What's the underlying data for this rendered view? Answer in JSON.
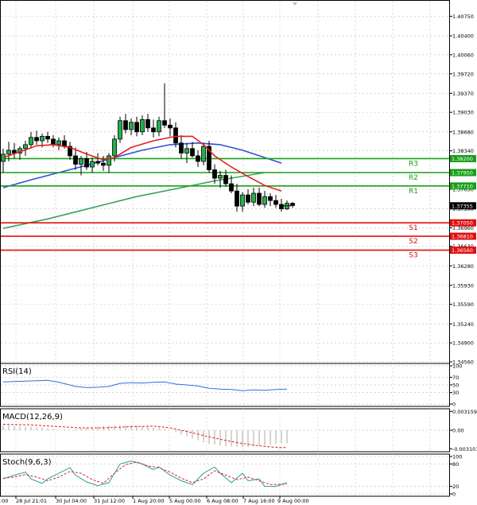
{
  "chart_data": {
    "type": "candlestick",
    "instrument_hint": "forex H4",
    "price_axis": {
      "ticks": [
        "1.40750",
        "1.40400",
        "1.40060",
        "1.39720",
        "1.39370",
        "1.39030",
        "1.38680",
        "1.38340",
        "1.37650",
        "1.37300",
        "1.36960",
        "1.36630",
        "1.36280",
        "1.35930",
        "1.35590",
        "1.35240",
        "1.34900",
        "1.34560"
      ],
      "range": [
        1.3456,
        1.4097
      ]
    },
    "time_axis": {
      "labels": [
        "28 Jul 21:01",
        "30 Jul 04:00",
        "31 Jul 12:00",
        "1 Aug 20:00",
        "5 Aug 00:00",
        "6 Aug 08:00",
        "7 Aug 16:00",
        "9 Aug 00:00"
      ],
      "leading_fragment": ":00"
    },
    "current_price": {
      "label": "1.37355",
      "value": 1.37355
    },
    "levels": [
      {
        "name": "R3",
        "value": 1.382,
        "label": "1.38200",
        "color": "#19a019"
      },
      {
        "name": "R2",
        "value": 1.3795,
        "label": "1.37950",
        "color": "#19a019"
      },
      {
        "name": "R1",
        "value": 1.3771,
        "label": "1.37710",
        "color": "#19a019"
      },
      {
        "name": "S1",
        "value": 1.3705,
        "label": "1.37050",
        "color": "#e01010"
      },
      {
        "name": "S2",
        "value": 1.3681,
        "label": "1.36810",
        "color": "#e01010"
      },
      {
        "name": "S3",
        "value": 1.3656,
        "label": "1.36560",
        "color": "#e01010"
      }
    ],
    "candles": [
      [
        1.3815,
        1.3838,
        1.3795,
        1.3828
      ],
      [
        1.3828,
        1.385,
        1.3815,
        1.3835
      ],
      [
        1.3835,
        1.3848,
        1.382,
        1.383
      ],
      [
        1.383,
        1.3842,
        1.3818,
        1.3838
      ],
      [
        1.3838,
        1.3852,
        1.3825,
        1.3845
      ],
      [
        1.3845,
        1.3868,
        1.3838,
        1.3858
      ],
      [
        1.3858,
        1.387,
        1.3845,
        1.3852
      ],
      [
        1.3852,
        1.3865,
        1.384,
        1.386
      ],
      [
        1.386,
        1.3868,
        1.3848,
        1.3855
      ],
      [
        1.3855,
        1.3862,
        1.384,
        1.3845
      ],
      [
        1.3845,
        1.3858,
        1.3835,
        1.3852
      ],
      [
        1.3852,
        1.3862,
        1.3838,
        1.3842
      ],
      [
        1.3842,
        1.385,
        1.3818,
        1.3825
      ],
      [
        1.3825,
        1.384,
        1.38,
        1.381
      ],
      [
        1.381,
        1.3825,
        1.379,
        1.382
      ],
      [
        1.382,
        1.3832,
        1.38,
        1.3805
      ],
      [
        1.3805,
        1.3822,
        1.3795,
        1.3815
      ],
      [
        1.3815,
        1.383,
        1.3808,
        1.3812
      ],
      [
        1.3812,
        1.3825,
        1.3798,
        1.3808
      ],
      [
        1.3808,
        1.383,
        1.3795,
        1.3825
      ],
      [
        1.3825,
        1.3862,
        1.3815,
        1.3855
      ],
      [
        1.3855,
        1.3895,
        1.3848,
        1.3888
      ],
      [
        1.3888,
        1.39,
        1.3865,
        1.3872
      ],
      [
        1.3872,
        1.3892,
        1.3862,
        1.3885
      ],
      [
        1.3885,
        1.3895,
        1.386,
        1.3868
      ],
      [
        1.3868,
        1.3898,
        1.3862,
        1.389
      ],
      [
        1.389,
        1.39,
        1.3868,
        1.3875
      ],
      [
        1.3875,
        1.389,
        1.3858,
        1.3868
      ],
      [
        1.3868,
        1.3895,
        1.386,
        1.3888
      ],
      [
        1.3888,
        1.3955,
        1.3875,
        1.388
      ],
      [
        1.388,
        1.3892,
        1.386,
        1.3875
      ],
      [
        1.3875,
        1.3885,
        1.384,
        1.3848
      ],
      [
        1.3848,
        1.3862,
        1.382,
        1.383
      ],
      [
        1.383,
        1.3848,
        1.3812,
        1.3838
      ],
      [
        1.3838,
        1.385,
        1.3822,
        1.3825
      ],
      [
        1.3825,
        1.3835,
        1.3805,
        1.3815
      ],
      [
        1.3815,
        1.3848,
        1.3808,
        1.3842
      ],
      [
        1.3842,
        1.3852,
        1.3795,
        1.38
      ],
      [
        1.38,
        1.381,
        1.3775,
        1.3785
      ],
      [
        1.3785,
        1.3798,
        1.3768,
        1.379
      ],
      [
        1.379,
        1.38,
        1.377,
        1.3775
      ],
      [
        1.3775,
        1.379,
        1.3758,
        1.3762
      ],
      [
        1.3762,
        1.3775,
        1.3725,
        1.3735
      ],
      [
        1.3735,
        1.376,
        1.3725,
        1.3755
      ],
      [
        1.3755,
        1.3765,
        1.3738,
        1.3742
      ],
      [
        1.3742,
        1.3768,
        1.3735,
        1.3758
      ],
      [
        1.3758,
        1.3768,
        1.3735,
        1.3738
      ],
      [
        1.3738,
        1.3762,
        1.3732,
        1.3752
      ],
      [
        1.3752,
        1.3758,
        1.3735,
        1.3745
      ],
      [
        1.3745,
        1.3755,
        1.3732,
        1.3738
      ],
      [
        1.3738,
        1.3748,
        1.3725,
        1.373
      ],
      [
        1.373,
        1.3745,
        1.3728,
        1.374
      ],
      [
        1.374,
        1.3742,
        1.3732,
        1.3736
      ]
    ],
    "ma_red": [
      [
        0,
        1.3822
      ],
      [
        3,
        1.3832
      ],
      [
        6,
        1.3843
      ],
      [
        9,
        1.3845
      ],
      [
        12,
        1.384
      ],
      [
        15,
        1.3828
      ],
      [
        18,
        1.3818
      ],
      [
        20,
        1.3822
      ],
      [
        23,
        1.384
      ],
      [
        27,
        1.3852
      ],
      [
        31,
        1.386
      ],
      [
        34,
        1.386
      ],
      [
        36,
        1.3845
      ],
      [
        38,
        1.3825
      ],
      [
        41,
        1.3805
      ],
      [
        44,
        1.3788
      ],
      [
        47,
        1.3772
      ],
      [
        50,
        1.3762
      ]
    ],
    "ma_blue": [
      [
        0,
        1.3768
      ],
      [
        5,
        1.3782
      ],
      [
        10,
        1.3795
      ],
      [
        15,
        1.3808
      ],
      [
        20,
        1.3822
      ],
      [
        25,
        1.3835
      ],
      [
        30,
        1.3845
      ],
      [
        35,
        1.3848
      ],
      [
        39,
        1.3845
      ],
      [
        43,
        1.3835
      ],
      [
        47,
        1.3822
      ],
      [
        50,
        1.3812
      ]
    ],
    "ma_green": [
      [
        0,
        1.3695
      ],
      [
        8,
        1.3712
      ],
      [
        16,
        1.3732
      ],
      [
        24,
        1.3752
      ],
      [
        32,
        1.3768
      ],
      [
        38,
        1.378
      ],
      [
        44,
        1.379
      ],
      [
        47,
        1.3795
      ]
    ],
    "indicators": [
      {
        "name": "RSI(14)",
        "scale": [
          "100",
          "70",
          "50",
          "30",
          "0"
        ],
        "type": "line",
        "values": [
          [
            0,
            58
          ],
          [
            4,
            60
          ],
          [
            8,
            62
          ],
          [
            10,
            57
          ],
          [
            13,
            46
          ],
          [
            15,
            43
          ],
          [
            17,
            44
          ],
          [
            19,
            46
          ],
          [
            21,
            54
          ],
          [
            23,
            56
          ],
          [
            25,
            55
          ],
          [
            27,
            57
          ],
          [
            29,
            58
          ],
          [
            31,
            52
          ],
          [
            33,
            50
          ],
          [
            35,
            47
          ],
          [
            37,
            41
          ],
          [
            39,
            39
          ],
          [
            41,
            38
          ],
          [
            43,
            35
          ],
          [
            45,
            37
          ],
          [
            47,
            36
          ],
          [
            49,
            38
          ],
          [
            51,
            39
          ]
        ]
      },
      {
        "name": "MACD(12,26,9)",
        "scale": [
          "0.003159",
          "0.00",
          "-0.003101"
        ],
        "type": "macd",
        "histogram": [
          0.0008,
          0.0008,
          0.0007,
          0.0007,
          0.0006,
          0.0006,
          0.0005,
          0.0004,
          0.0003,
          0.0002,
          0.0001,
          0.0001,
          0.0001,
          0.0002,
          0.0003,
          0.0004,
          0.0005,
          0.0006,
          0.0007,
          0.0008,
          0.0008,
          0.0008,
          0.0008,
          0.0008,
          0.0008,
          0.0007,
          0.0006,
          0.0005,
          0.0004,
          0.0002,
          0.0,
          -0.0003,
          -0.0007,
          -0.001,
          -0.0014,
          -0.0017,
          -0.002,
          -0.0023,
          -0.0024,
          -0.0026,
          -0.0027,
          -0.0027,
          -0.0028,
          -0.0028,
          -0.0028,
          -0.0027,
          -0.0026,
          -0.0025,
          -0.0024,
          -0.0023,
          -0.0022,
          -0.0022
        ],
        "signal": [
          [
            0,
            0.001
          ],
          [
            5,
            0.0009
          ],
          [
            10,
            0.0006
          ],
          [
            14,
            0.0004
          ],
          [
            18,
            0.0004
          ],
          [
            23,
            0.0006
          ],
          [
            27,
            0.0007
          ],
          [
            30,
            0.0004
          ],
          [
            33,
            -0.0002
          ],
          [
            37,
            -0.0011
          ],
          [
            41,
            -0.0019
          ],
          [
            45,
            -0.0025
          ],
          [
            48,
            -0.0028
          ],
          [
            50,
            -0.0029
          ],
          [
            51,
            -0.0029
          ]
        ]
      },
      {
        "name": "Stoch(9,6,3)",
        "scale": [
          "100",
          "80",
          "20",
          "0"
        ],
        "type": "stoch",
        "main": [
          [
            0,
            40
          ],
          [
            2,
            50
          ],
          [
            4,
            58
          ],
          [
            5,
            40
          ],
          [
            7,
            28
          ],
          [
            8,
            40
          ],
          [
            10,
            55
          ],
          [
            12,
            70
          ],
          [
            13,
            50
          ],
          [
            15,
            32
          ],
          [
            17,
            22
          ],
          [
            19,
            30
          ],
          [
            21,
            80
          ],
          [
            23,
            88
          ],
          [
            25,
            80
          ],
          [
            27,
            65
          ],
          [
            28,
            72
          ],
          [
            30,
            50
          ],
          [
            32,
            35
          ],
          [
            34,
            25
          ],
          [
            36,
            55
          ],
          [
            38,
            72
          ],
          [
            39,
            55
          ],
          [
            41,
            30
          ],
          [
            43,
            55
          ],
          [
            44,
            35
          ],
          [
            46,
            40
          ],
          [
            47,
            20
          ],
          [
            49,
            20
          ],
          [
            51,
            30
          ]
        ],
        "signal": [
          [
            0,
            42
          ],
          [
            2,
            45
          ],
          [
            4,
            52
          ],
          [
            6,
            45
          ],
          [
            8,
            35
          ],
          [
            10,
            45
          ],
          [
            12,
            60
          ],
          [
            14,
            55
          ],
          [
            16,
            38
          ],
          [
            18,
            28
          ],
          [
            20,
            55
          ],
          [
            22,
            78
          ],
          [
            24,
            85
          ],
          [
            26,
            75
          ],
          [
            28,
            70
          ],
          [
            30,
            58
          ],
          [
            32,
            42
          ],
          [
            34,
            30
          ],
          [
            36,
            40
          ],
          [
            38,
            62
          ],
          [
            40,
            50
          ],
          [
            42,
            38
          ],
          [
            44,
            45
          ],
          [
            46,
            35
          ],
          [
            48,
            25
          ],
          [
            51,
            26
          ]
        ]
      }
    ]
  }
}
